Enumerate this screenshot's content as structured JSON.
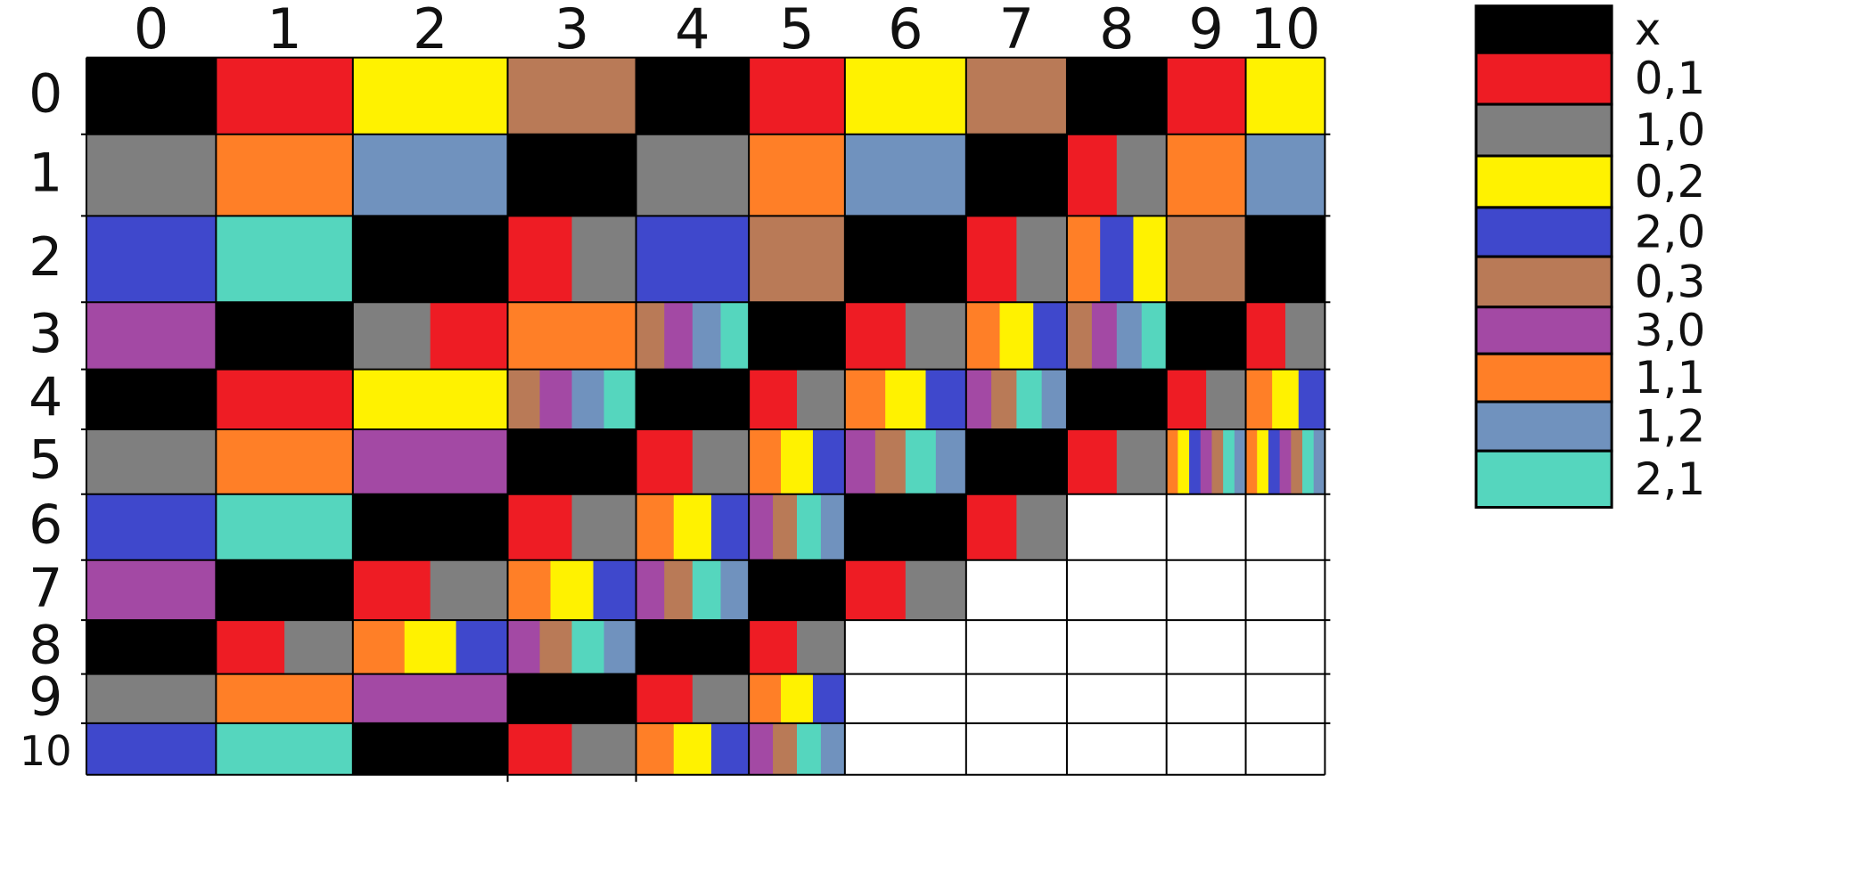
{
  "colors": {
    "x": "#000000",
    "0,1": "#ee1c24",
    "1,0": "#7f7f7f",
    "0,2": "#fff200",
    "2,0": "#3f48cc",
    "0,3": "#b97a57",
    "3,0": "#a349a4",
    "1,1": "#ff7f27",
    "1,2": "#7092be",
    "2,1": "#55d6be",
    "empty": "#ffffff"
  },
  "grid": {
    "column_labels": [
      "0",
      "1",
      "2",
      "3",
      "4",
      "5",
      "6",
      "7",
      "8",
      "9",
      "10"
    ],
    "row_labels": [
      "0",
      "1",
      "2",
      "3",
      "4",
      "5",
      "6",
      "7",
      "8",
      "9",
      "10"
    ],
    "cells": [
      [
        [
          "x"
        ],
        [
          "0,1"
        ],
        [
          "0,2"
        ],
        [
          "0,3"
        ],
        [
          "x"
        ],
        [
          "0,1"
        ],
        [
          "0,2"
        ],
        [
          "0,3"
        ],
        [
          "x"
        ],
        [
          "0,1"
        ],
        [
          "0,2"
        ]
      ],
      [
        [
          "1,0"
        ],
        [
          "1,1"
        ],
        [
          "1,2"
        ],
        [
          "x"
        ],
        [
          "1,0"
        ],
        [
          "1,1"
        ],
        [
          "1,2"
        ],
        [
          "x"
        ],
        [
          "0,1",
          "1,0"
        ],
        [
          "1,1"
        ],
        [
          "1,2"
        ]
      ],
      [
        [
          "2,0"
        ],
        [
          "2,1"
        ],
        [
          "x"
        ],
        [
          "0,1",
          "1,0"
        ],
        [
          "2,0"
        ],
        [
          "0,3"
        ],
        [
          "x"
        ],
        [
          "0,1",
          "1,0"
        ],
        [
          "1,1",
          "2,0",
          "0,2"
        ],
        [
          "0,3"
        ],
        [
          "x"
        ]
      ],
      [
        [
          "3,0"
        ],
        [
          "x"
        ],
        [
          "1,0",
          "0,1"
        ],
        [
          "1,1"
        ],
        [
          "0,3",
          "3,0",
          "1,2",
          "2,1"
        ],
        [
          "x"
        ],
        [
          "0,1",
          "1,0"
        ],
        [
          "1,1",
          "0,2",
          "2,0"
        ],
        [
          "0,3",
          "3,0",
          "1,2",
          "2,1"
        ],
        [
          "x"
        ],
        [
          "0,1",
          "1,0"
        ]
      ],
      [
        [
          "x"
        ],
        [
          "0,1"
        ],
        [
          "0,2"
        ],
        [
          "0,3",
          "3,0",
          "1,2",
          "2,1"
        ],
        [
          "x"
        ],
        [
          "0,1",
          "1,0"
        ],
        [
          "1,1",
          "0,2",
          "2,0"
        ],
        [
          "3,0",
          "0,3",
          "2,1",
          "1,2"
        ],
        [
          "x"
        ],
        [
          "0,1",
          "1,0"
        ],
        [
          "1,1",
          "0,2",
          "2,0"
        ]
      ],
      [
        [
          "1,0"
        ],
        [
          "1,1"
        ],
        [
          "3,0"
        ],
        [
          "x"
        ],
        [
          "0,1",
          "1,0"
        ],
        [
          "1,1",
          "0,2",
          "2,0"
        ],
        [
          "3,0",
          "0,3",
          "2,1",
          "1,2"
        ],
        [
          "x"
        ],
        [
          "0,1",
          "1,0"
        ],
        [
          "1,1",
          "0,2",
          "2,0",
          "3,0",
          "0,3",
          "2,1",
          "1,2"
        ],
        [
          "1,1",
          "0,2",
          "2,0",
          "3,0",
          "0,3",
          "2,1",
          "1,2"
        ]
      ],
      [
        [
          "2,0"
        ],
        [
          "2,1"
        ],
        [
          "x"
        ],
        [
          "0,1",
          "1,0"
        ],
        [
          "1,1",
          "0,2",
          "2,0"
        ],
        [
          "3,0",
          "0,3",
          "2,1",
          "1,2"
        ],
        [
          "x"
        ],
        [
          "0,1",
          "1,0"
        ],
        [
          "empty"
        ],
        [
          "empty"
        ],
        [
          "empty"
        ]
      ],
      [
        [
          "3,0"
        ],
        [
          "x"
        ],
        [
          "0,1",
          "1,0"
        ],
        [
          "1,1",
          "0,2",
          "2,0"
        ],
        [
          "3,0",
          "0,3",
          "2,1",
          "1,2"
        ],
        [
          "x"
        ],
        [
          "0,1",
          "1,0"
        ],
        [
          "empty"
        ],
        [
          "empty"
        ],
        [
          "empty"
        ],
        [
          "empty"
        ]
      ],
      [
        [
          "x"
        ],
        [
          "0,1",
          "1,0"
        ],
        [
          "1,1",
          "0,2",
          "2,0"
        ],
        [
          "3,0",
          "0,3",
          "2,1",
          "1,2"
        ],
        [
          "x"
        ],
        [
          "0,1",
          "1,0"
        ],
        [
          "empty"
        ],
        [
          "empty"
        ],
        [
          "empty"
        ],
        [
          "empty"
        ],
        [
          "empty"
        ]
      ],
      [
        [
          "1,0"
        ],
        [
          "1,1"
        ],
        [
          "3,0"
        ],
        [
          "x"
        ],
        [
          "0,1",
          "1,0"
        ],
        [
          "1,1",
          "0,2",
          "2,0"
        ],
        [
          "empty"
        ],
        [
          "empty"
        ],
        [
          "empty"
        ],
        [
          "empty"
        ],
        [
          "empty"
        ]
      ],
      [
        [
          "2,0"
        ],
        [
          "2,1"
        ],
        [
          "x"
        ],
        [
          "0,1",
          "1,0"
        ],
        [
          "1,1",
          "0,2",
          "2,0"
        ],
        [
          "3,0",
          "0,3",
          "2,1",
          "1,2"
        ],
        [
          "empty"
        ],
        [
          "empty"
        ],
        [
          "empty"
        ],
        [
          "empty"
        ],
        [
          "empty"
        ]
      ]
    ]
  },
  "legend": {
    "entries": [
      {
        "key": "x",
        "label": "x"
      },
      {
        "key": "0,1",
        "label": "0,1"
      },
      {
        "key": "1,0",
        "label": "1,0"
      },
      {
        "key": "0,2",
        "label": "0,2"
      },
      {
        "key": "2,0",
        "label": "2,0"
      },
      {
        "key": "0,3",
        "label": "0,3"
      },
      {
        "key": "3,0",
        "label": "3,0"
      },
      {
        "key": "1,1",
        "label": "1,1"
      },
      {
        "key": "1,2",
        "label": "1,2"
      },
      {
        "key": "2,1",
        "label": "2,1"
      }
    ]
  }
}
